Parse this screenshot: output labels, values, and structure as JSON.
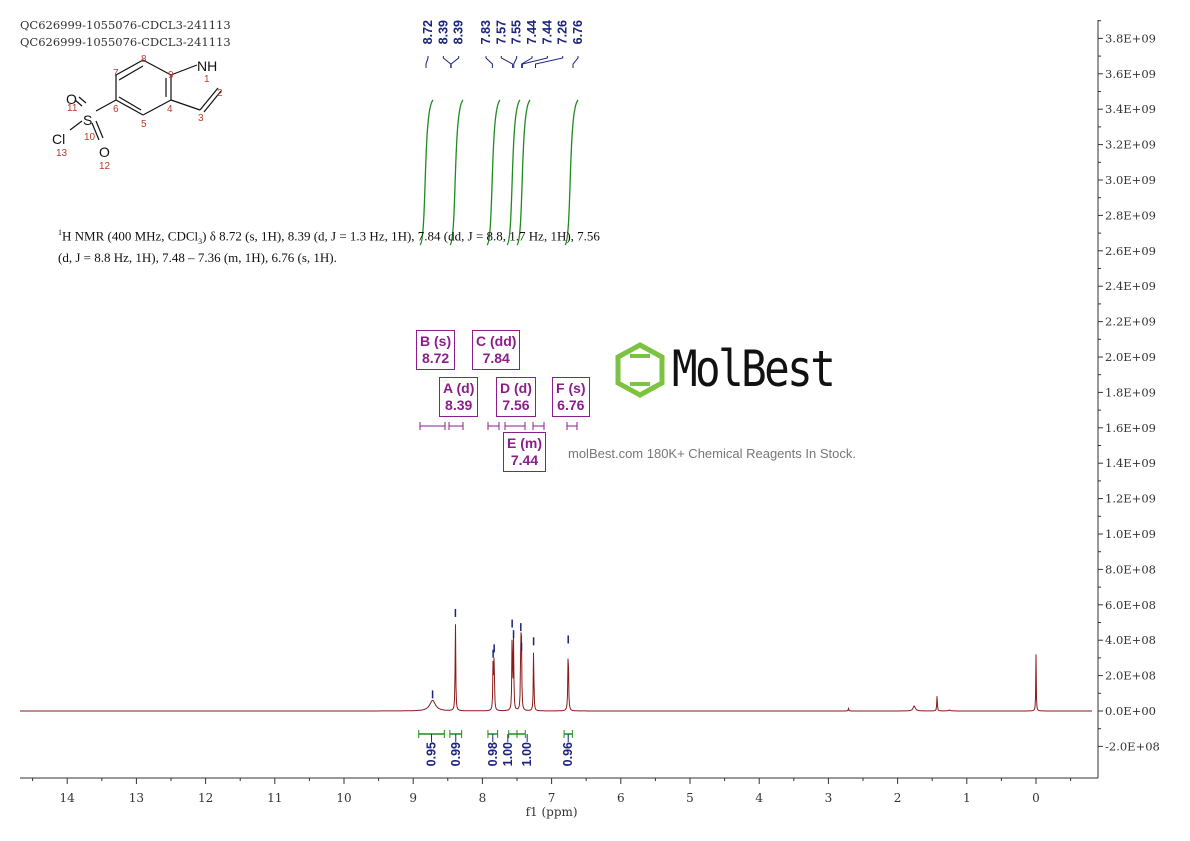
{
  "header": {
    "line1": "QC626999-1055076-CDCL3-241113",
    "line2": "QC626999-1055076-CDCL3-241113"
  },
  "structure": {
    "atoms": {
      "n1": "NH",
      "o11": "O",
      "o12": "O",
      "s": "S",
      "cl": "Cl"
    },
    "numbers": [
      "1",
      "2",
      "3",
      "4",
      "5",
      "6",
      "7",
      "8",
      "9",
      "10",
      "11",
      "12",
      "13"
    ]
  },
  "nmr_text": {
    "sup": "1",
    "part1": "H NMR (400 MHz, CDCl",
    "sub": "3",
    "part2": ") δ 8.72 (s, 1H), 8.39 (d, J = 1.3 Hz, 1H), 7.84 (dd, J = 8.8, 1.7 Hz, 1H), 7.56",
    "line2": "(d, J = 8.8 Hz, 1H), 7.48 – 7.36 (m, 1H), 6.76 (s, 1H)."
  },
  "multiplets": [
    {
      "label": "B (s)",
      "value": "8.72"
    },
    {
      "label": "C (dd)",
      "value": "7.84"
    },
    {
      "label": "A (d)",
      "value": "8.39"
    },
    {
      "label": "D (d)",
      "value": "7.56"
    },
    {
      "label": "F (s)",
      "value": "6.76"
    },
    {
      "label": "E (m)",
      "value": "7.44"
    }
  ],
  "watermark": {
    "logo": "MolBest",
    "tagline": "molBest.com 180K+ Chemical Reagents In Stock."
  },
  "colors": {
    "spectrum": "#8b1a1a",
    "integral": "#1e8c1e",
    "peak_label": "#1a237e",
    "multiplet": "#8b1e8b",
    "logo_hex": "#7dc242"
  },
  "chart_data": {
    "type": "line",
    "xlabel": "f1 (ppm)",
    "xlim": [
      14.7,
      -0.8
    ],
    "x_reversed": true,
    "ylim": [
      -380000000.0,
      3900000000.0
    ],
    "x_ticks": [
      "14",
      "13",
      "12",
      "11",
      "10",
      "9",
      "8",
      "7",
      "6",
      "5",
      "4",
      "3",
      "2",
      "1",
      "0"
    ],
    "y_ticks": [
      "3.8E+09",
      "3.6E+09",
      "3.4E+09",
      "3.2E+09",
      "3.0E+09",
      "2.8E+09",
      "2.6E+09",
      "2.4E+09",
      "2.2E+09",
      "2.0E+09",
      "1.8E+09",
      "1.6E+09",
      "1.4E+09",
      "1.2E+09",
      "1.0E+09",
      "8.0E+08",
      "6.0E+08",
      "4.0E+08",
      "2.0E+08",
      "0.0E+00",
      "-2.0E+08"
    ],
    "y_axis_side": "right",
    "peaks": [
      {
        "ppm": 8.72,
        "height": 60000000.0,
        "width": 0.05
      },
      {
        "ppm": 8.39,
        "height": 520000000.0,
        "width": 0.005
      },
      {
        "ppm": 7.845,
        "height": 290000000.0,
        "width": 0.005
      },
      {
        "ppm": 7.83,
        "height": 320000000.0,
        "width": 0.005
      },
      {
        "ppm": 7.57,
        "height": 460000000.0,
        "width": 0.005
      },
      {
        "ppm": 7.55,
        "height": 400000000.0,
        "width": 0.005
      },
      {
        "ppm": 7.445,
        "height": 440000000.0,
        "width": 0.005
      },
      {
        "ppm": 7.435,
        "height": 330000000.0,
        "width": 0.005
      },
      {
        "ppm": 7.26,
        "height": 360000000.0,
        "width": 0.005
      },
      {
        "ppm": 6.76,
        "height": 370000000.0,
        "width": 0.006
      },
      {
        "ppm": 2.71,
        "height": 14000000.0,
        "width": 0.005
      },
      {
        "ppm": 1.76,
        "height": 28000000.0,
        "width": 0.02
      },
      {
        "ppm": 1.43,
        "height": 85000000.0,
        "width": 0.005
      },
      {
        "ppm": 1.25,
        "height": 5000000.0,
        "width": 0.02
      },
      {
        "ppm": 0.0,
        "height": 320000000.0,
        "width": 0.004
      }
    ],
    "peak_labels": [
      "8.72",
      "8.39",
      "8.39",
      "7.83",
      "7.57",
      "7.55",
      "7.44",
      "7.44",
      "7.26",
      "6.76"
    ],
    "peak_label_ppm": [
      8.72,
      8.39,
      8.385,
      7.835,
      7.565,
      7.55,
      7.445,
      7.435,
      7.26,
      6.76
    ],
    "integrals": [
      {
        "from": 8.92,
        "to": 8.55,
        "value": "0.95"
      },
      {
        "from": 8.47,
        "to": 8.3,
        "value": "0.99"
      },
      {
        "from": 7.92,
        "to": 7.78,
        "value": "0.98"
      },
      {
        "from": 7.62,
        "to": 7.5,
        "value": "1.00"
      },
      {
        "from": 7.5,
        "to": 7.38,
        "value": "1.00"
      },
      {
        "from": 6.82,
        "to": 6.7,
        "value": "0.96"
      }
    ]
  }
}
